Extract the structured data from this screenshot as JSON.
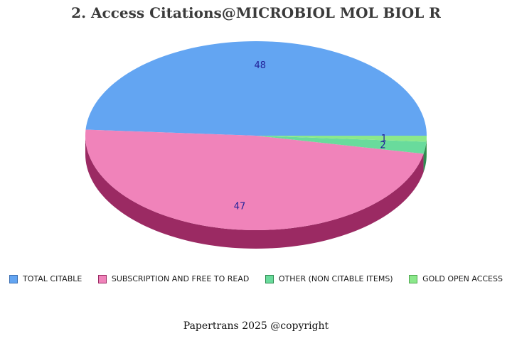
{
  "title": "2. Access Citations@MICROBIOL MOL BIOL R",
  "footer": {
    "text": "Papertrans 2025 @copyright"
  },
  "chart_data": {
    "type": "pie",
    "style": "pie3d",
    "title": "2. Access Citations@MICROBIOL MOL BIOL R",
    "total": 98,
    "start_angle": 0,
    "direction": "counterclockwise",
    "legend_position": "bottom",
    "value_label_color": "#222299",
    "background_color": "#ffffff",
    "categories": [
      "TOTAL CITABLE",
      "SUBSCRIPTION AND FREE TO READ",
      "OTHER (NON CITABLE ITEMS)",
      "GOLD OPEN ACCESS"
    ],
    "values": [
      48,
      47,
      2,
      1
    ],
    "slices": [
      {
        "label": "TOTAL CITABLE",
        "value": 48,
        "color": "#63A5F2",
        "side_color": "#3C6FB2"
      },
      {
        "label": "SUBSCRIPTION AND FREE TO READ",
        "value": 47,
        "color": "#F083BA",
        "side_color": "#9B2A63"
      },
      {
        "label": "OTHER (NON CITABLE ITEMS)",
        "value": 2,
        "color": "#69DB9C",
        "side_color": "#2E8B50"
      },
      {
        "label": "GOLD OPEN ACCESS",
        "value": 1,
        "color": "#8BE88B",
        "side_color": "#4FA64F"
      }
    ]
  }
}
